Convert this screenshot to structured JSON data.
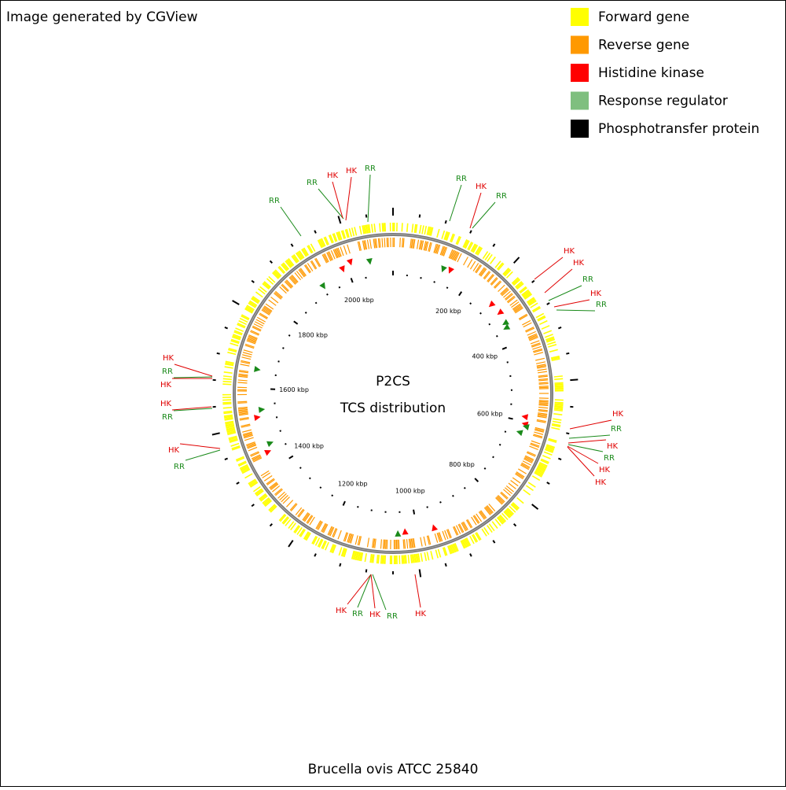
{
  "header": {
    "title": "Image generated by CGView"
  },
  "legend": [
    {
      "label": "Forward gene",
      "color": "#ffff00"
    },
    {
      "label": "Reverse gene",
      "color": "#ff9900"
    },
    {
      "label": "Histidine kinase",
      "color": "#ff0000"
    },
    {
      "label": "Response regulator",
      "color": "#7fbf7f"
    },
    {
      "label": "Phosphotransfer protein",
      "color": "#000000"
    }
  ],
  "center": {
    "title": "P2CS",
    "subtitle": "TCS distribution"
  },
  "ruler": [
    "200 kbp",
    "400 kbp",
    "600 kbp",
    "800 kbp",
    "1000 kbp",
    "1200 kbp",
    "1400 kbp",
    "1600 kbp",
    "1800 kbp",
    "2000 kbp"
  ],
  "features": [
    "RR",
    "RR",
    "HK",
    "HK",
    "RR",
    "RR",
    "HK",
    "RR",
    "HK",
    "HK",
    "RR",
    "HK",
    "RR",
    "HK",
    "RR",
    "HK",
    "RR",
    "HK",
    "HK",
    "HK",
    "RR",
    "HK",
    "RR",
    "HK",
    "HK",
    "RR",
    "HK",
    "HK",
    "RR",
    "HK",
    "RR"
  ],
  "footer": {
    "title": "Brucella ovis ATCC 25840"
  }
}
